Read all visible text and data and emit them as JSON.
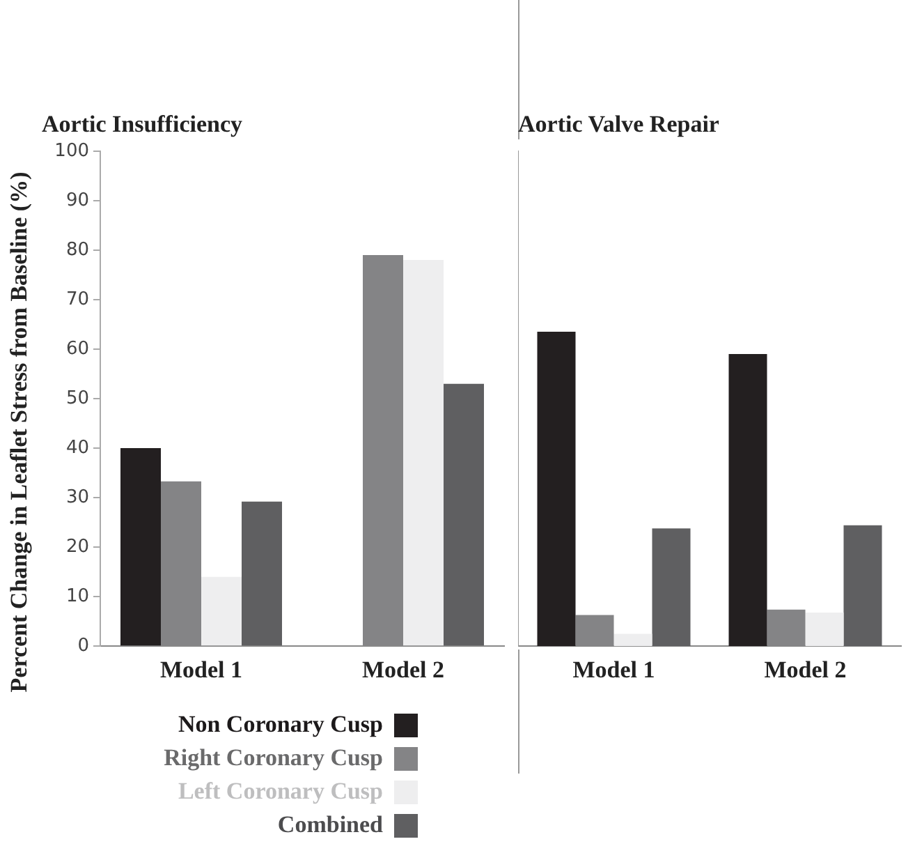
{
  "chart_data": [
    {
      "type": "bar",
      "title": "Aortic Insufficiency",
      "ylabel": "Percent Change in Leaflet Stress from Baseline (%)",
      "categories": [
        "Model 1",
        "Model 2"
      ],
      "ylim": [
        0,
        100
      ],
      "yticks": [
        0,
        10,
        20,
        30,
        40,
        50,
        60,
        70,
        80,
        90,
        100
      ],
      "grid": false,
      "legend": "bottom left",
      "series": [
        {
          "name": "Non Coronary Cusp",
          "color": "#231f20",
          "values": [
            40,
            0
          ]
        },
        {
          "name": "Right Coronary Cusp",
          "color": "#848486",
          "values": [
            33.3,
            79
          ]
        },
        {
          "name": "Left Coronary Cusp",
          "color": "#eeeeef",
          "values": [
            14,
            78
          ]
        },
        {
          "name": "Combined",
          "color": "#5f5f61",
          "values": [
            29.2,
            53
          ]
        }
      ]
    },
    {
      "type": "bar",
      "title": "Aortic Valve Repair",
      "categories": [
        "Model 1",
        "Model 2"
      ],
      "ylim": [
        0,
        100
      ],
      "yticks": [
        0,
        10,
        20,
        30,
        40,
        50,
        60,
        70,
        80,
        90,
        100
      ],
      "tick_labels": "x",
      "grid": false,
      "series": [
        {
          "color": "#231f20",
          "values": [
            63.5,
            59
          ]
        },
        {
          "color": "#848486",
          "values": [
            6.3,
            7.4
          ]
        },
        {
          "color": "#eeeeef",
          "values": [
            2.5,
            6.8
          ]
        },
        {
          "color": "#5f5f61",
          "values": [
            23.8,
            24.4
          ]
        }
      ]
    }
  ]
}
